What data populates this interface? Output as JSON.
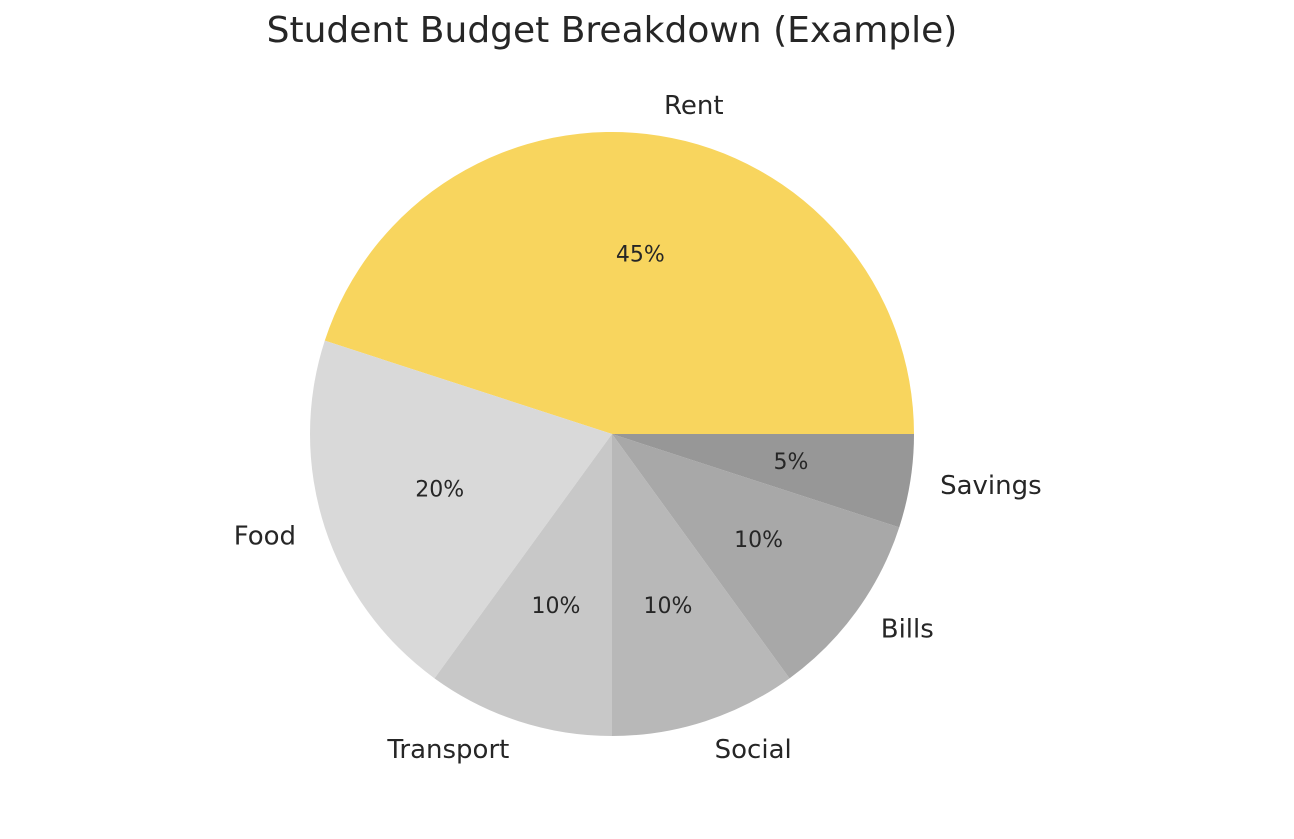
{
  "chart_data": {
    "type": "pie",
    "title": "Student Budget Breakdown (Example)",
    "categories": [
      "Rent",
      "Food",
      "Transport",
      "Social",
      "Bills",
      "Savings"
    ],
    "values": [
      45,
      20,
      10,
      10,
      10,
      5
    ],
    "value_labels": [
      "45%",
      "20%",
      "10%",
      "10%",
      "10%",
      "5%"
    ],
    "colors": [
      "#f8d55e",
      "#d9d9d9",
      "#c8c8c8",
      "#b8b8b8",
      "#a8a8a8",
      "#979797"
    ],
    "start_angle": 0,
    "direction": "counterclockwise",
    "legend": "none"
  }
}
